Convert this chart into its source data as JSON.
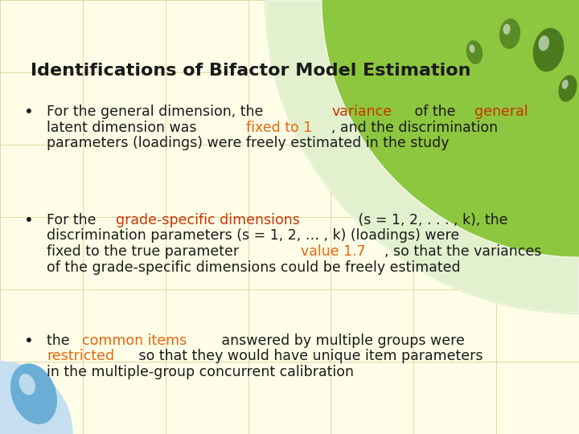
{
  "title": "Identifications of Bifactor Model Estimation",
  "title_fontsize": 16,
  "title_color": "#1a1a1a",
  "bg_color": "#fefee8",
  "grid_color": "#ddd8a0",
  "header_green": "#8dc63f",
  "figsize": [
    7.2,
    5.4
  ],
  "dpi": 100,
  "font_size": 12.5,
  "bullet1_lines": [
    [
      {
        "text": "For the general dimension, the ",
        "color": "#1a1a1a"
      },
      {
        "text": "variance",
        "color": "#cc3300"
      },
      {
        "text": " of the ",
        "color": "#1a1a1a"
      },
      {
        "text": "general",
        "color": "#cc3300"
      }
    ],
    [
      {
        "text": "latent dimension was ",
        "color": "#1a1a1a"
      },
      {
        "text": "fixed to 1",
        "color": "#e8650a"
      },
      {
        "text": ", and the discrimination",
        "color": "#1a1a1a"
      }
    ],
    [
      {
        "text": "parameters (loadings) were freely estimated in the study",
        "color": "#1a1a1a"
      }
    ]
  ],
  "bullet2_lines": [
    [
      {
        "text": "For the ",
        "color": "#1a1a1a"
      },
      {
        "text": "grade-specific dimensions",
        "color": "#cc3300"
      },
      {
        "text": " (s = 1, 2, . . . , k), the",
        "color": "#1a1a1a"
      }
    ],
    [
      {
        "text": "discrimination parameters (s = 1, 2, … , k) (loadings) were",
        "color": "#1a1a1a"
      }
    ],
    [
      {
        "text": "fixed to the true parameter ",
        "color": "#1a1a1a"
      },
      {
        "text": "value 1.7",
        "color": "#e8650a"
      },
      {
        "text": ", so that the variances",
        "color": "#1a1a1a"
      }
    ],
    [
      {
        "text": "of the grade-specific dimensions could be freely estimated",
        "color": "#1a1a1a"
      }
    ]
  ],
  "bullet3_lines": [
    [
      {
        "text": "the ",
        "color": "#1a1a1a"
      },
      {
        "text": "common items",
        "color": "#e8650a"
      },
      {
        "text": " answered by multiple groups were",
        "color": "#1a1a1a"
      }
    ],
    [
      {
        "text": "restricted",
        "color": "#e8650a"
      },
      {
        "text": " so that they would have unique item parameters",
        "color": "#1a1a1a"
      }
    ],
    [
      {
        "text": "in the multiple-group concurrent calibration",
        "color": "#1a1a1a"
      }
    ]
  ]
}
